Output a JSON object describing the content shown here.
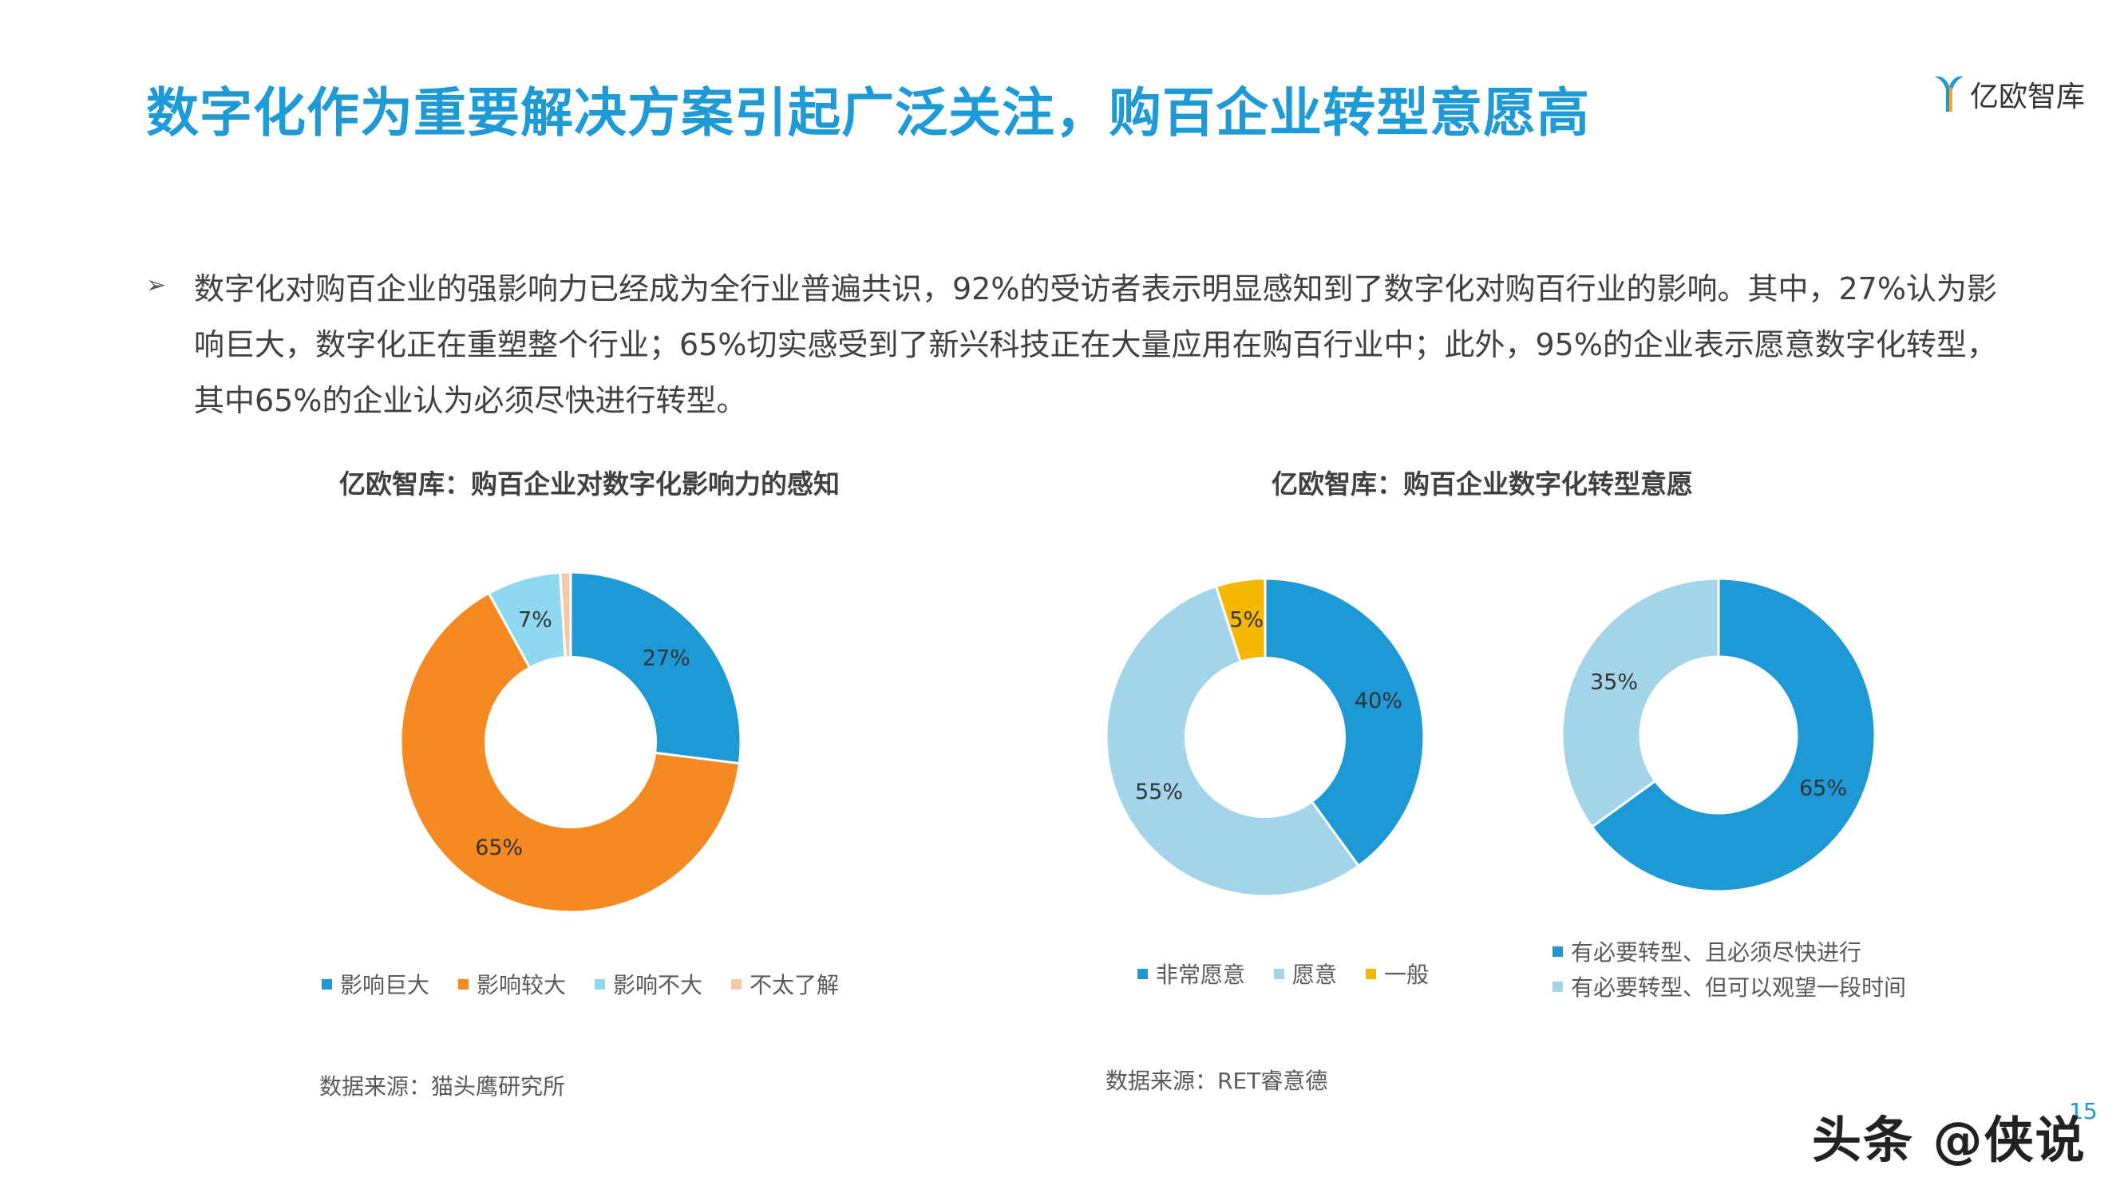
{
  "header": {
    "title": "数字化作为重要解决方案引起广泛关注，购百企业转型意愿高",
    "logo_text": "亿欧智库"
  },
  "intro": {
    "bullet": "➢",
    "text": "数字化对购百企业的强影响力已经成为全行业普遍共识，92%的受访者表示明显感知到了数字化对购百行业的影响。其中，27%认为影响巨大，数字化正在重塑整个行业；65%切实感受到了新兴科技正在大量应用在购百行业中；此外，95%的企业表示愿意数字化转型，其中65%的企业认为必须尽快进行转型。"
  },
  "chart_data": [
    {
      "type": "pie",
      "donut": true,
      "title": "亿欧智库：购百企业对数字化影响力的感知",
      "categories": [
        "影响巨大",
        "影响较大",
        "影响不大",
        "不太了解"
      ],
      "values": [
        27,
        65,
        7,
        1
      ],
      "labels": [
        "27%",
        "65%",
        "7%",
        ""
      ],
      "colors": [
        "#1d9ad6",
        "#f58a23",
        "#8fd8ef",
        "#f5c9a8"
      ],
      "legend": "bottom",
      "source": "数据来源：猫头鹰研究所"
    },
    {
      "type": "pie",
      "donut": true,
      "title": "亿欧智库：购百企业数字化转型意愿",
      "categories": [
        "非常愿意",
        "愿意",
        "一般"
      ],
      "values": [
        40,
        55,
        5
      ],
      "labels": [
        "40%",
        "55%",
        "5%"
      ],
      "colors": [
        "#1d9ad6",
        "#a3d4ea",
        "#f5b800"
      ],
      "legend": "bottom",
      "source": "数据来源：RET睿意德"
    },
    {
      "type": "pie",
      "donut": true,
      "categories": [
        "有必要转型、且必须尽快进行",
        "有必要转型、但可以观望一段时间"
      ],
      "values": [
        65,
        35
      ],
      "labels": [
        "65%",
        "35%"
      ],
      "colors": [
        "#1d9ad6",
        "#a3d4ea"
      ],
      "legend": "bottom"
    }
  ],
  "footer": {
    "page_number": "15",
    "watermark": "头条 @侠说"
  }
}
